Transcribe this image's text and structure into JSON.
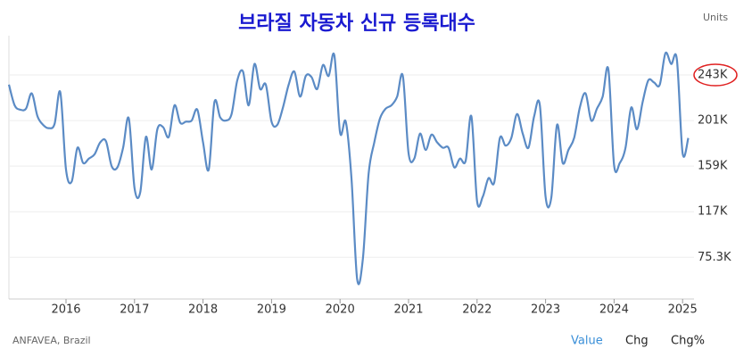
{
  "chart_data": {
    "type": "line",
    "title": "브라질 자동차 신규 등록대수",
    "units_label": "Units",
    "source": "ANFAVEA, Brazil",
    "controls": [
      "Value",
      "Chg",
      "Chg%"
    ],
    "color": "#5b8bc5",
    "grid": true,
    "ylim": [
      37000,
      279000
    ],
    "yticks": [
      {
        "value": 75300,
        "label": "75.3K"
      },
      {
        "value": 117200,
        "label": "117K"
      },
      {
        "value": 159100,
        "label": "159K"
      },
      {
        "value": 201000,
        "label": "201K"
      },
      {
        "value": 242900,
        "label": "243K"
      }
    ],
    "categories": [
      null,
      null,
      null,
      null,
      null,
      null,
      null,
      null,
      null,
      null,
      "2016",
      null,
      null,
      null,
      null,
      null,
      null,
      null,
      null,
      null,
      null,
      null,
      "2017",
      null,
      null,
      null,
      null,
      null,
      null,
      null,
      null,
      null,
      null,
      null,
      "2018",
      null,
      null,
      null,
      null,
      null,
      null,
      null,
      null,
      null,
      null,
      null,
      "2019",
      null,
      null,
      null,
      null,
      null,
      null,
      null,
      null,
      null,
      null,
      null,
      "2020",
      null,
      null,
      null,
      null,
      null,
      null,
      null,
      null,
      null,
      null,
      null,
      "2021",
      null,
      null,
      null,
      null,
      null,
      null,
      null,
      null,
      null,
      null,
      null,
      "2022",
      null,
      null,
      null,
      null,
      null,
      null,
      null,
      null,
      null,
      null,
      null,
      "2023",
      null,
      null,
      null,
      null,
      null,
      null,
      null,
      null,
      null,
      null,
      null,
      "2024",
      null,
      null,
      null,
      null,
      null,
      null,
      null,
      null,
      null,
      null,
      null,
      "2025",
      null
    ],
    "values": [
      234000,
      215000,
      211000,
      212000,
      226000,
      205000,
      197000,
      194000,
      198000,
      227000,
      156000,
      145000,
      176000,
      162000,
      166000,
      170000,
      181000,
      182000,
      159000,
      158000,
      176000,
      203000,
      139000,
      135000,
      186000,
      156000,
      193000,
      195000,
      186000,
      215000,
      199000,
      200000,
      201000,
      211000,
      181000,
      156000,
      218000,
      204000,
      201000,
      207000,
      238000,
      246000,
      215000,
      253000,
      230000,
      234000,
      200000,
      197000,
      213000,
      234000,
      246000,
      223000,
      242000,
      241000,
      230000,
      252000,
      242000,
      261000,
      190000,
      200000,
      148000,
      55000,
      74000,
      152000,
      181000,
      203000,
      212000,
      215000,
      223000,
      242000,
      171000,
      166000,
      189000,
      174000,
      188000,
      181000,
      176000,
      176000,
      158000,
      166000,
      164000,
      205000,
      127000,
      131000,
      148000,
      144000,
      185000,
      178000,
      185000,
      207000,
      189000,
      176000,
      205000,
      215000,
      131000,
      130000,
      197000,
      162000,
      174000,
      185000,
      213000,
      226000,
      201000,
      212000,
      223000,
      248000,
      160000,
      162000,
      176000,
      213000,
      193000,
      218000,
      238000,
      236000,
      234000,
      263000,
      253000,
      257000,
      171000,
      185000
    ]
  }
}
